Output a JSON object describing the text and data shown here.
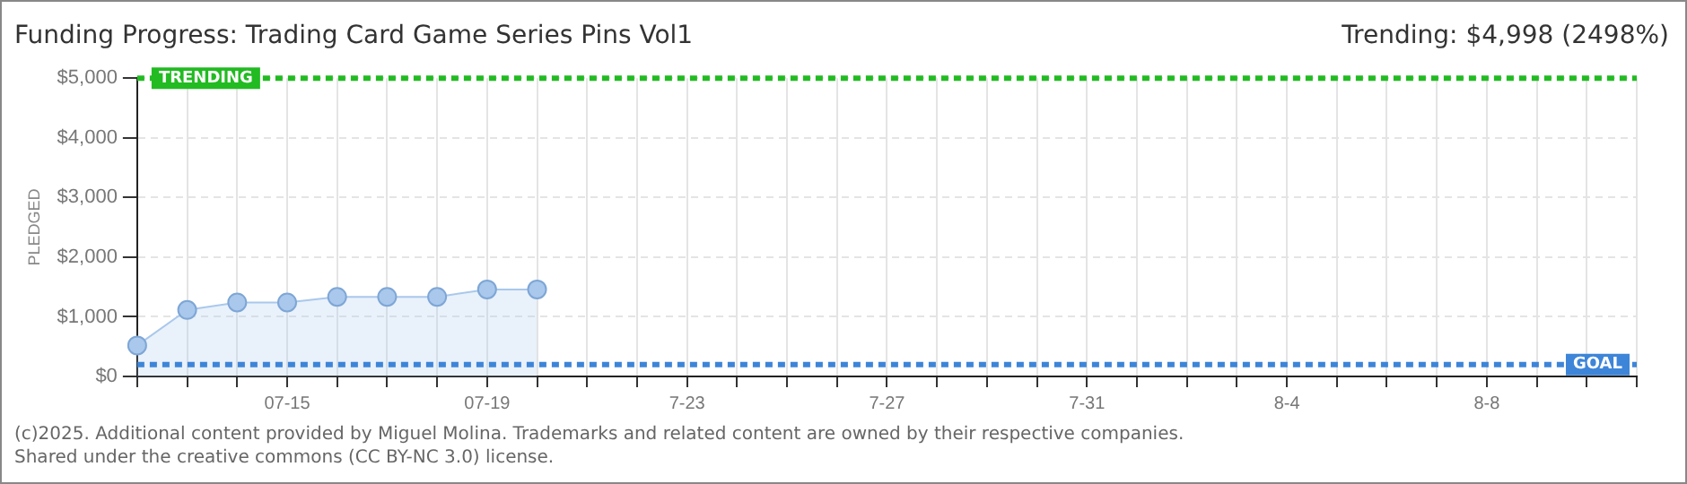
{
  "chart_data": {
    "type": "area",
    "title": "Funding Progress: Trading Card Game Series Pins Vol1",
    "subtitle": "Trending: $4,998 (2498%)",
    "ylabel": "PLEDGED",
    "categories": [
      null,
      null,
      null,
      "07-15",
      null,
      null,
      null,
      "07-19",
      null,
      null,
      null,
      "7-23",
      null,
      null,
      null,
      "7-27",
      null,
      null,
      null,
      "7-31",
      null,
      null,
      null,
      "8-4",
      null,
      null,
      null,
      "8-8",
      null,
      null,
      null
    ],
    "series": [
      {
        "color": "#a9c8ec",
        "values": [
          520,
          1115,
          1240,
          1240,
          1334,
          1334,
          1334,
          1459,
          1459,
          null,
          null,
          null,
          null,
          null,
          null,
          null,
          null,
          null,
          null,
          null,
          null,
          null,
          null,
          null,
          null,
          null,
          null,
          null,
          null,
          null,
          null
        ]
      }
    ],
    "ylim": [
      0,
      5000
    ],
    "yticks": [
      {
        "value": 0,
        "label": "$0"
      },
      {
        "value": 1000,
        "label": "$1,000"
      },
      {
        "value": 2000,
        "label": "$2,000"
      },
      {
        "value": 3000,
        "label": "$3,000"
      },
      {
        "value": 4000,
        "label": "$4,000"
      },
      {
        "value": 5000,
        "label": "$5,000"
      }
    ],
    "ref_lines": [
      {
        "axis": "y",
        "value": 4998,
        "label": "TRENDING",
        "color": "#22bb22",
        "line_style": "dashed"
      },
      {
        "axis": "y",
        "value": 200,
        "label": "GOAL",
        "color": "#3d85d8",
        "line_style": "dashed"
      }
    ],
    "grid": true,
    "marker": "circle",
    "legend": false,
    "annotations": [
      "(c)2025. Additional content provided by Miguel Molina. Trademarks and related content are owned by their respective companies.",
      "Shared under the creative commons (CC BY-NC 3.0) license."
    ]
  }
}
